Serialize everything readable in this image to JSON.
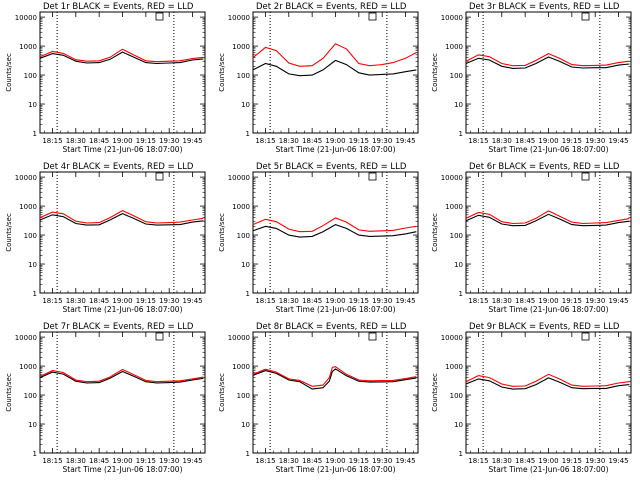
{
  "figure": {
    "ylabel": "Counts/sec",
    "xlabel": "Start Time (21-Jun-06 18:07:00)",
    "x_tick_labels": [
      "18:15",
      "18:30",
      "18:45",
      "19:00",
      "19:15",
      "19:30",
      "19:45"
    ],
    "y_tick_labels": [
      "1",
      "10",
      "100",
      "1000",
      "10000"
    ],
    "series_colors": {
      "events": "#000000",
      "lld": "#ff0000"
    }
  },
  "chart_data": [
    {
      "type": "line",
      "title": "Det 1r BLACK = Events, RED = LLD",
      "x": [
        "18:07",
        "18:15",
        "18:22",
        "18:30",
        "18:37",
        "18:45",
        "18:52",
        "19:00",
        "19:07",
        "19:15",
        "19:22",
        "19:30",
        "19:37",
        "19:45",
        "19:52"
      ],
      "ylim": [
        1,
        15000
      ],
      "yscale": "log",
      "vlines": [
        "18:18",
        "19:33"
      ],
      "series": [
        {
          "name": "Events",
          "values": [
            380,
            550,
            480,
            300,
            260,
            270,
            350,
            620,
            420,
            270,
            250,
            260,
            270,
            330,
            360
          ]
        },
        {
          "name": "LLD",
          "values": [
            430,
            650,
            560,
            340,
            300,
            310,
            410,
            780,
            500,
            310,
            290,
            300,
            310,
            370,
            410
          ]
        }
      ]
    },
    {
      "type": "line",
      "title": "Det 2r BLACK = Events, RED = LLD",
      "x": [
        "18:07",
        "18:15",
        "18:22",
        "18:30",
        "18:37",
        "18:45",
        "18:52",
        "19:00",
        "19:07",
        "19:15",
        "19:22",
        "19:30",
        "19:37",
        "19:45",
        "19:52"
      ],
      "ylim": [
        1,
        15000
      ],
      "yscale": "log",
      "vlines": [
        "18:18",
        "19:33"
      ],
      "series": [
        {
          "name": "Events",
          "values": [
            150,
            250,
            200,
            110,
            95,
            100,
            150,
            320,
            230,
            120,
            100,
            105,
            110,
            130,
            150
          ]
        },
        {
          "name": "LLD",
          "values": [
            400,
            900,
            700,
            260,
            200,
            210,
            380,
            1200,
            800,
            250,
            210,
            230,
            270,
            380,
            600
          ]
        }
      ]
    },
    {
      "type": "line",
      "title": "Det 3r BLACK = Events, RED = LLD",
      "x": [
        "18:07",
        "18:15",
        "18:22",
        "18:30",
        "18:37",
        "18:45",
        "18:52",
        "19:00",
        "19:07",
        "19:15",
        "19:22",
        "19:30",
        "19:37",
        "19:45",
        "19:52"
      ],
      "ylim": [
        1,
        15000
      ],
      "yscale": "log",
      "vlines": [
        "18:18",
        "19:33"
      ],
      "series": [
        {
          "name": "Events",
          "values": [
            250,
            380,
            330,
            200,
            170,
            175,
            250,
            420,
            300,
            190,
            175,
            180,
            180,
            220,
            240
          ]
        },
        {
          "name": "LLD",
          "values": [
            300,
            500,
            430,
            250,
            210,
            215,
            320,
            550,
            380,
            230,
            210,
            215,
            220,
            270,
            300
          ]
        }
      ]
    },
    {
      "type": "line",
      "title": "Det 4r BLACK = Events, RED = LLD",
      "x": [
        "18:07",
        "18:15",
        "18:22",
        "18:30",
        "18:37",
        "18:45",
        "18:52",
        "19:00",
        "19:07",
        "19:15",
        "19:22",
        "19:30",
        "19:37",
        "19:45",
        "19:52"
      ],
      "ylim": [
        1,
        15000
      ],
      "yscale": "log",
      "vlines": [
        "18:18",
        "19:33"
      ],
      "series": [
        {
          "name": "Events",
          "values": [
            330,
            500,
            430,
            250,
            220,
            225,
            330,
            550,
            380,
            240,
            220,
            225,
            230,
            280,
            310
          ]
        },
        {
          "name": "LLD",
          "values": [
            400,
            620,
            540,
            300,
            260,
            270,
            400,
            700,
            470,
            290,
            260,
            270,
            280,
            330,
            380
          ]
        }
      ]
    },
    {
      "type": "line",
      "title": "Det 5r BLACK = Events, RED = LLD",
      "x": [
        "18:07",
        "18:15",
        "18:22",
        "18:30",
        "18:37",
        "18:45",
        "18:52",
        "19:00",
        "19:07",
        "19:15",
        "19:22",
        "19:30",
        "19:37",
        "19:45",
        "19:52"
      ],
      "ylim": [
        1,
        15000
      ],
      "yscale": "log",
      "vlines": [
        "18:18",
        "19:33"
      ],
      "series": [
        {
          "name": "Events",
          "values": [
            140,
            200,
            170,
            100,
            85,
            90,
            130,
            230,
            170,
            100,
            90,
            92,
            95,
            110,
            130
          ]
        },
        {
          "name": "LLD",
          "values": [
            230,
            350,
            290,
            160,
            130,
            135,
            210,
            390,
            280,
            150,
            135,
            140,
            145,
            175,
            200
          ]
        }
      ]
    },
    {
      "type": "line",
      "title": "Det 6r BLACK = Events, RED = LLD",
      "x": [
        "18:07",
        "18:15",
        "18:22",
        "18:30",
        "18:37",
        "18:45",
        "18:52",
        "19:00",
        "19:07",
        "19:15",
        "19:22",
        "19:30",
        "19:37",
        "19:45",
        "19:52"
      ],
      "ylim": [
        1,
        15000
      ],
      "yscale": "log",
      "vlines": [
        "18:18",
        "19:33"
      ],
      "series": [
        {
          "name": "Events",
          "values": [
            310,
            480,
            410,
            240,
            210,
            215,
            310,
            520,
            360,
            230,
            210,
            215,
            220,
            270,
            300
          ]
        },
        {
          "name": "LLD",
          "values": [
            380,
            600,
            520,
            290,
            250,
            260,
            380,
            680,
            450,
            280,
            250,
            260,
            270,
            320,
            370
          ]
        }
      ]
    },
    {
      "type": "line",
      "title": "Det 7r BLACK = Events, RED = LLD",
      "x": [
        "18:07",
        "18:15",
        "18:22",
        "18:30",
        "18:37",
        "18:45",
        "18:52",
        "19:00",
        "19:07",
        "19:15",
        "19:22",
        "19:30",
        "19:37",
        "19:45",
        "19:52"
      ],
      "ylim": [
        1,
        15000
      ],
      "yscale": "log",
      "vlines": [
        "18:18",
        "19:33"
      ],
      "series": [
        {
          "name": "Events",
          "values": [
            400,
            620,
            530,
            300,
            260,
            270,
            380,
            650,
            450,
            290,
            260,
            270,
            280,
            330,
            380
          ]
        },
        {
          "name": "LLD",
          "values": [
            440,
            700,
            600,
            330,
            290,
            300,
            420,
            760,
            510,
            320,
            290,
            300,
            310,
            360,
            420
          ]
        }
      ]
    },
    {
      "type": "line",
      "title": "Det 8r BLACK = Events, RED = LLD",
      "x": [
        "18:07",
        "18:15",
        "18:22",
        "18:30",
        "18:37",
        "18:45",
        "18:52",
        "18:56",
        "18:58",
        "19:00",
        "19:07",
        "19:15",
        "19:22",
        "19:30",
        "19:37",
        "19:45",
        "19:52"
      ],
      "ylim": [
        1,
        15000
      ],
      "yscale": "log",
      "vlines": [
        "18:18",
        "19:33"
      ],
      "series": [
        {
          "name": "Events",
          "values": [
            480,
            700,
            560,
            330,
            290,
            160,
            180,
            300,
            650,
            800,
            460,
            300,
            280,
            285,
            290,
            340,
            390
          ]
        },
        {
          "name": "LLD",
          "values": [
            520,
            780,
            620,
            360,
            320,
            200,
            220,
            400,
            900,
            950,
            520,
            330,
            310,
            315,
            320,
            370,
            430
          ]
        }
      ]
    },
    {
      "type": "line",
      "title": "Det 9r BLACK = Events, RED = LLD",
      "x": [
        "18:07",
        "18:15",
        "18:22",
        "18:30",
        "18:37",
        "18:45",
        "18:52",
        "19:00",
        "19:07",
        "19:15",
        "19:22",
        "19:30",
        "19:37",
        "19:45",
        "19:52"
      ],
      "ylim": [
        1,
        15000
      ],
      "yscale": "log",
      "vlines": [
        "18:18",
        "19:33"
      ],
      "series": [
        {
          "name": "Events",
          "values": [
            240,
            360,
            310,
            190,
            160,
            165,
            230,
            390,
            280,
            180,
            165,
            170,
            170,
            210,
            230
          ]
        },
        {
          "name": "LLD",
          "values": [
            290,
            470,
            400,
            240,
            200,
            205,
            300,
            520,
            360,
            220,
            200,
            205,
            210,
            260,
            290
          ]
        }
      ]
    }
  ]
}
